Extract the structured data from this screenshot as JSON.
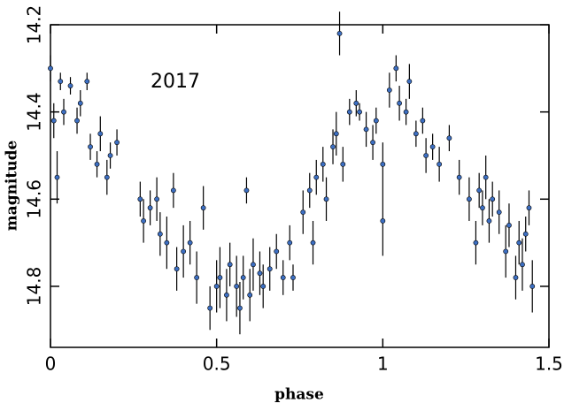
{
  "chart_data": {
    "type": "scatter",
    "xlabel": "phase",
    "ylabel": "magnitude",
    "annotation": "2017",
    "xlim": [
      0,
      1.5
    ],
    "xticks": [
      0,
      0.5,
      1,
      1.5
    ],
    "ylim": [
      14.2,
      14.94
    ],
    "yticks": [
      14.2,
      14.4,
      14.6,
      14.8
    ],
    "y_inverted": true,
    "series": [
      {
        "color": "#3d6fc2",
        "x": [
          0.0,
          0.01,
          0.02,
          0.03,
          0.04,
          0.06,
          0.08,
          0.09,
          0.11,
          0.12,
          0.14,
          0.15,
          0.17,
          0.18,
          0.2,
          0.27,
          0.28,
          0.3,
          0.32,
          0.33,
          0.35,
          0.37,
          0.38,
          0.4,
          0.42,
          0.44,
          0.46,
          0.48,
          0.5,
          0.51,
          0.53,
          0.54,
          0.56,
          0.57,
          0.58,
          0.59,
          0.6,
          0.61,
          0.63,
          0.64,
          0.66,
          0.68,
          0.7,
          0.72,
          0.73,
          0.76,
          0.78,
          0.79,
          0.8,
          0.82,
          0.83,
          0.85,
          0.86,
          0.87,
          0.88,
          0.9,
          0.92,
          0.93,
          0.95,
          0.97,
          0.98,
          1.0,
          1.0,
          1.02,
          1.04,
          1.05,
          1.07,
          1.08,
          1.1,
          1.12,
          1.13,
          1.15,
          1.17,
          1.2,
          1.23,
          1.26,
          1.28,
          1.29,
          1.3,
          1.31,
          1.32,
          1.33,
          1.35,
          1.37,
          1.38,
          1.4,
          1.41,
          1.42,
          1.43,
          1.44,
          1.45
        ],
        "values": [
          14.3,
          14.42,
          14.55,
          14.33,
          14.4,
          14.34,
          14.42,
          14.38,
          14.33,
          14.48,
          14.52,
          14.45,
          14.55,
          14.5,
          14.47,
          14.6,
          14.65,
          14.62,
          14.6,
          14.68,
          14.7,
          14.58,
          14.76,
          14.72,
          14.7,
          14.78,
          14.62,
          14.85,
          14.8,
          14.78,
          14.82,
          14.75,
          14.8,
          14.85,
          14.78,
          14.58,
          14.82,
          14.75,
          14.77,
          14.8,
          14.76,
          14.72,
          14.78,
          14.7,
          14.78,
          14.63,
          14.58,
          14.7,
          14.55,
          14.52,
          14.6,
          14.48,
          14.45,
          14.22,
          14.52,
          14.4,
          14.38,
          14.4,
          14.44,
          14.47,
          14.42,
          14.52,
          14.65,
          14.35,
          14.3,
          14.38,
          14.4,
          14.33,
          14.45,
          14.42,
          14.5,
          14.48,
          14.52,
          14.46,
          14.55,
          14.6,
          14.7,
          14.58,
          14.62,
          14.55,
          14.65,
          14.6,
          14.63,
          14.72,
          14.66,
          14.78,
          14.7,
          14.75,
          14.68,
          14.62,
          14.8
        ],
        "errors": [
          0.03,
          0.04,
          0.06,
          0.02,
          0.03,
          0.02,
          0.03,
          0.03,
          0.02,
          0.03,
          0.03,
          0.04,
          0.04,
          0.03,
          0.03,
          0.04,
          0.05,
          0.04,
          0.05,
          0.05,
          0.06,
          0.04,
          0.05,
          0.06,
          0.05,
          0.06,
          0.05,
          0.05,
          0.06,
          0.07,
          0.06,
          0.05,
          0.07,
          0.06,
          0.05,
          0.03,
          0.06,
          0.06,
          0.05,
          0.05,
          0.05,
          0.04,
          0.04,
          0.04,
          0.03,
          0.05,
          0.04,
          0.05,
          0.04,
          0.04,
          0.05,
          0.04,
          0.05,
          0.05,
          0.04,
          0.03,
          0.03,
          0.02,
          0.04,
          0.04,
          0.03,
          0.05,
          0.08,
          0.04,
          0.03,
          0.04,
          0.03,
          0.04,
          0.03,
          0.03,
          0.04,
          0.03,
          0.04,
          0.03,
          0.04,
          0.05,
          0.05,
          0.04,
          0.04,
          0.05,
          0.05,
          0.04,
          0.05,
          0.06,
          0.05,
          0.05,
          0.05,
          0.06,
          0.04,
          0.04,
          0.06
        ]
      }
    ]
  }
}
